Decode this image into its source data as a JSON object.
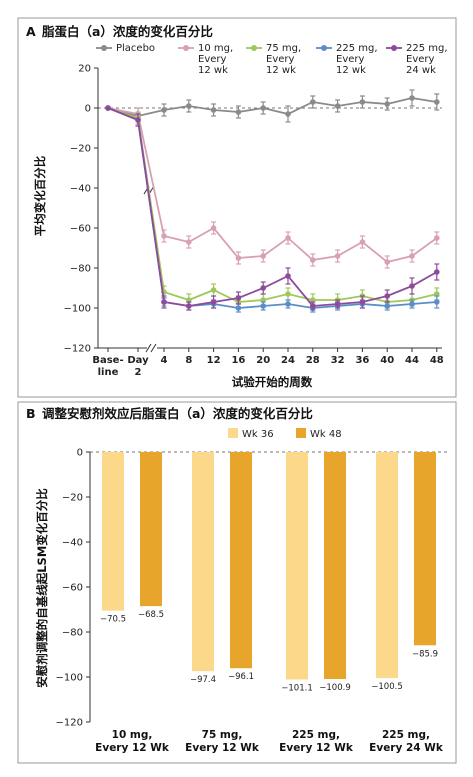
{
  "chart_data": [
    {
      "panel": "A",
      "type": "line",
      "title": "脂蛋白（a）浓度的变化百分比",
      "xlabel": "试验开始的周数",
      "ylabel": "平均变化百分比",
      "x_labels": [
        [
          "Base-",
          "line"
        ],
        [
          "Day",
          "2"
        ],
        "4",
        "8",
        "12",
        "16",
        "20",
        "24",
        "28",
        "32",
        "36",
        "40",
        "44",
        "48"
      ],
      "ylim": [
        -120,
        20
      ],
      "yticks": [
        20,
        0,
        -20,
        -40,
        -60,
        -80,
        -100,
        -120
      ],
      "series": [
        {
          "name": [
            "Placebo"
          ],
          "color": "#8a8a8a",
          "values": [
            0,
            -4,
            -1,
            1,
            -1,
            -2,
            0,
            -3,
            3,
            1,
            3,
            2,
            5,
            3
          ],
          "err": [
            0,
            4,
            3,
            3,
            3,
            3,
            3,
            4,
            3,
            3,
            3,
            3,
            4,
            4
          ]
        },
        {
          "name": [
            "10 mg,",
            "Every",
            "12 wk"
          ],
          "color": "#d9a0b5",
          "values": [
            0,
            -3,
            -64,
            -67,
            -60,
            -75,
            -74,
            -65,
            -76,
            -74,
            -67,
            -77,
            -74,
            -65
          ],
          "err": [
            0,
            3,
            3,
            3,
            3,
            3,
            3,
            3,
            3,
            3,
            3,
            3,
            3,
            3
          ]
        },
        {
          "name": [
            "75 mg,",
            "Every",
            "12 wk"
          ],
          "color": "#9fc85a",
          "values": [
            0,
            -5,
            -92,
            -96,
            -91,
            -97,
            -96,
            -93,
            -96,
            -96,
            -94,
            -97,
            -96,
            -93
          ],
          "err": [
            0,
            3,
            3,
            3,
            3,
            3,
            3,
            3,
            3,
            3,
            3,
            3,
            3,
            3
          ]
        },
        {
          "name": [
            "225 mg,",
            "Every",
            "12 wk"
          ],
          "color": "#5b8ec9",
          "values": [
            0,
            -6,
            -97,
            -99,
            -98,
            -100,
            -99,
            -98,
            -100,
            -99,
            -98,
            -99,
            -98,
            -97
          ],
          "err": [
            0,
            3,
            2,
            2,
            2,
            2,
            2,
            2,
            2,
            2,
            2,
            2,
            2,
            3
          ]
        },
        {
          "name": [
            "225 mg,",
            "Every",
            "24 wk"
          ],
          "color": "#8e4b9c",
          "values": [
            0,
            -6,
            -97,
            -99,
            -97,
            -95,
            -90,
            -84,
            -99,
            -98,
            -97,
            -94,
            -89,
            -82
          ],
          "err": [
            0,
            3,
            3,
            2,
            3,
            3,
            3,
            4,
            2,
            2,
            3,
            3,
            4,
            4
          ]
        }
      ]
    },
    {
      "panel": "B",
      "type": "bar",
      "title": "调整安慰剂效应后脂蛋白（a）浓度的变化百分比",
      "ylabel": "安慰剂调整的自基线起LSM变化百分比",
      "categories": [
        [
          "10 mg,",
          "Every 12 Wk"
        ],
        [
          "75 mg,",
          "Every 12 Wk"
        ],
        [
          "225 mg,",
          "Every 12 Wk"
        ],
        [
          "225 mg,",
          "Every 24 Wk"
        ]
      ],
      "ylim": [
        -120,
        0
      ],
      "yticks": [
        0,
        -20,
        -40,
        -60,
        -80,
        -100,
        -120
      ],
      "series": [
        {
          "name": "Wk 36",
          "color": "#fbd88a",
          "values": [
            -70.5,
            -97.4,
            -101.1,
            -100.5
          ],
          "labels": [
            "−70.5",
            "−97.4",
            "−101.1",
            "−100.5"
          ]
        },
        {
          "name": "Wk 48",
          "color": "#e8a52c",
          "values": [
            -68.5,
            -96.1,
            -100.9,
            -85.9
          ],
          "labels": [
            "−68.5",
            "−96.1",
            "−100.9",
            "−85.9"
          ]
        }
      ]
    }
  ]
}
